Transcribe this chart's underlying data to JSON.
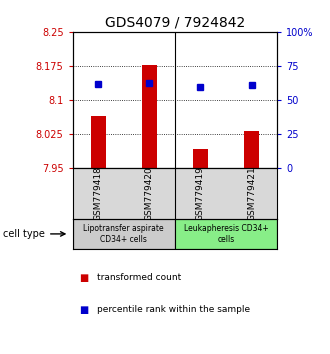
{
  "title": "GDS4079 / 7924842",
  "samples": [
    "GSM779418",
    "GSM779420",
    "GSM779419",
    "GSM779421"
  ],
  "bar_values": [
    8.065,
    8.178,
    7.993,
    8.032
  ],
  "dot_values": [
    8.135,
    8.138,
    8.128,
    8.133
  ],
  "ylim_left": [
    7.95,
    8.25
  ],
  "ylim_right": [
    0,
    100
  ],
  "yticks_left": [
    7.95,
    8.025,
    8.1,
    8.175,
    8.25
  ],
  "yticks_right": [
    0,
    25,
    50,
    75,
    100
  ],
  "ytick_labels_left": [
    "7.95",
    "8.025",
    "8.1",
    "8.175",
    "8.25"
  ],
  "ytick_labels_right": [
    "0",
    "25",
    "50",
    "75",
    "100%"
  ],
  "bar_color": "#cc0000",
  "dot_color": "#0000cc",
  "bar_bottom": 7.95,
  "cell_type_groups": [
    {
      "label": "Lipotransfer aspirate\nCD34+ cells",
      "indices": [
        0,
        1
      ],
      "color": "#cccccc"
    },
    {
      "label": "Leukapheresis CD34+\ncells",
      "indices": [
        2,
        3
      ],
      "color": "#88ee88"
    }
  ],
  "cell_type_label": "cell type",
  "legend_bar_label": "transformed count",
  "legend_dot_label": "percentile rank within the sample",
  "title_fontsize": 10,
  "tick_fontsize": 7,
  "sample_label_fontsize": 6.5
}
